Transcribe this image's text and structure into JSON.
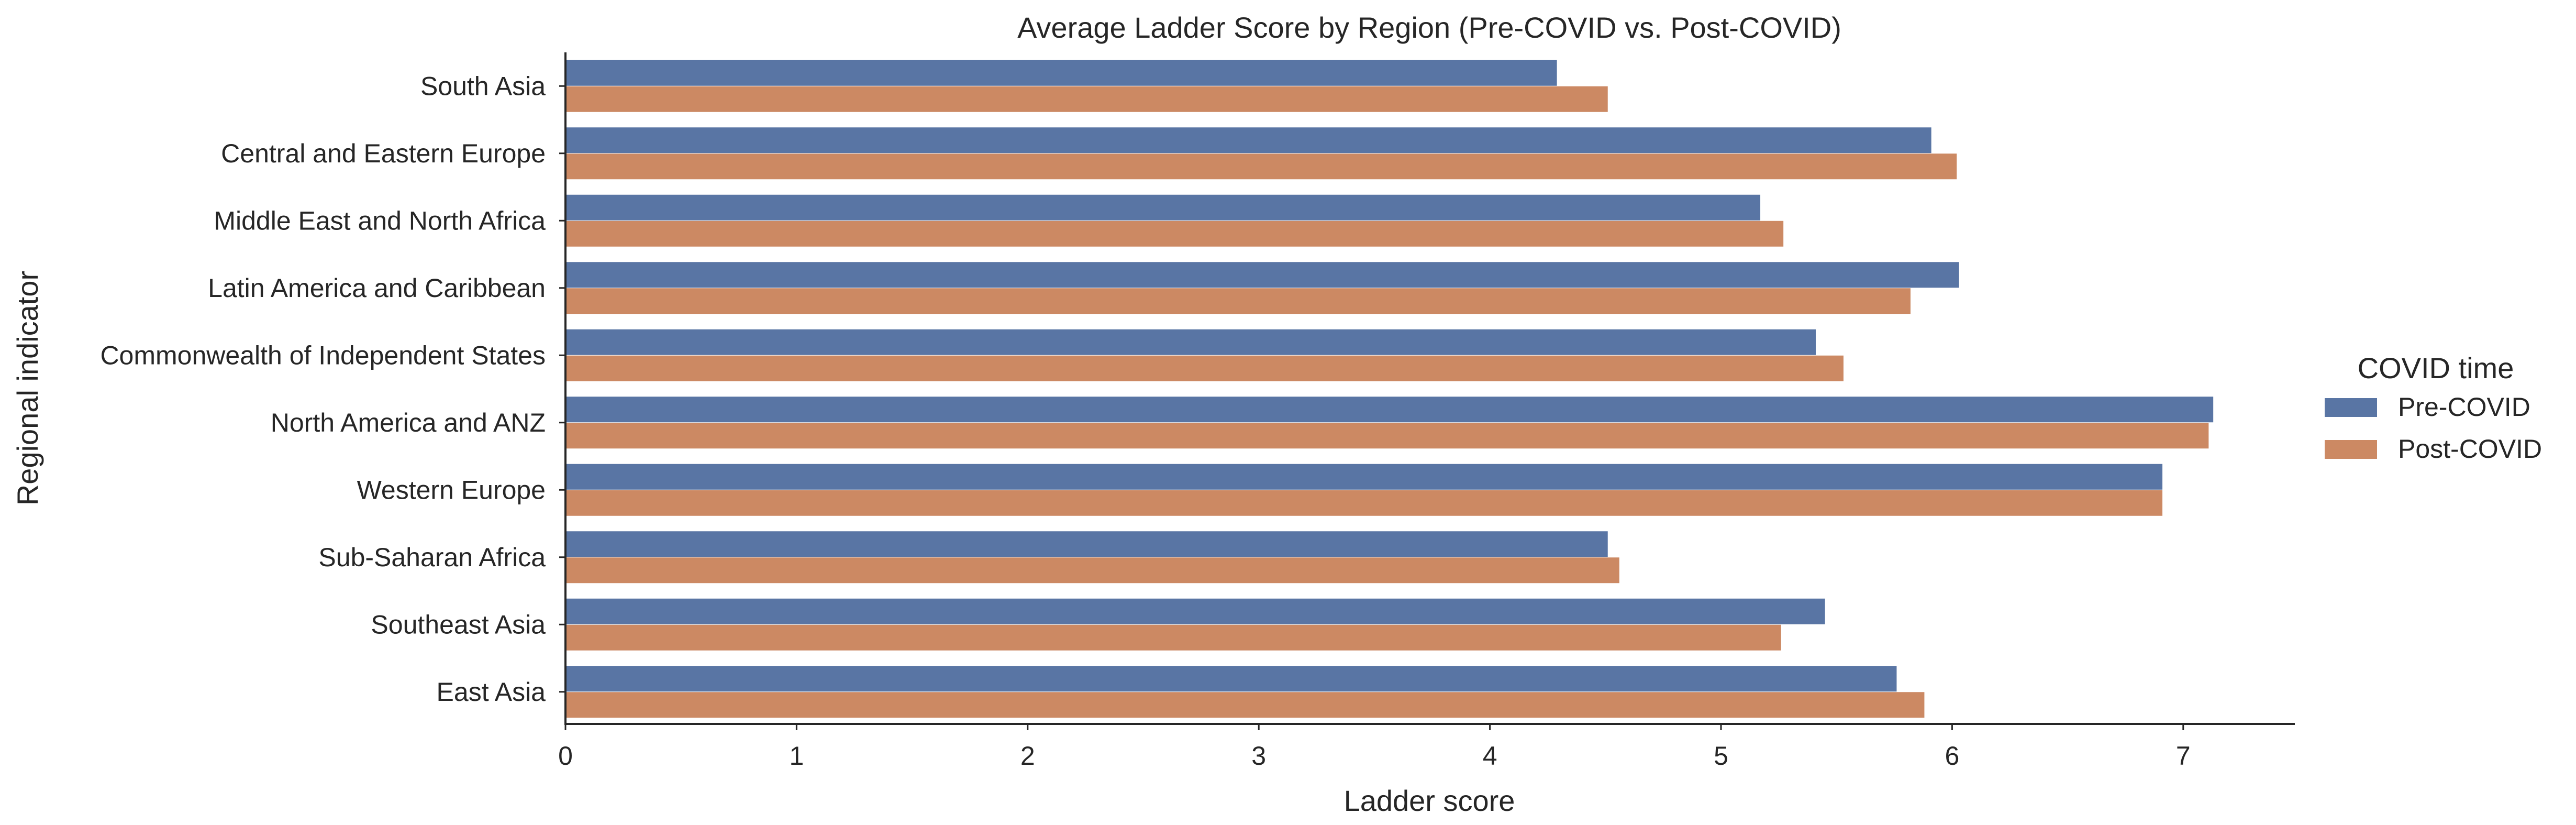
{
  "chart_data": {
    "type": "bar",
    "orientation": "horizontal",
    "title": "Average Ladder Score by Region (Pre-COVID vs. Post-COVID)",
    "xlabel": "Ladder score",
    "ylabel": "Regional indicator",
    "xlim": [
      0,
      7.5
    ],
    "xticks": [
      0,
      1,
      2,
      3,
      4,
      5,
      6,
      7
    ],
    "grid": false,
    "legend": {
      "title": "COVID time",
      "placement": "right"
    },
    "categories": [
      "South Asia",
      "Central and Eastern Europe",
      "Middle East and North Africa",
      "Latin America and Caribbean",
      "Commonwealth of Independent States",
      "North America and ANZ",
      "Western Europe",
      "Sub-Saharan Africa",
      "Southeast Asia",
      "East Asia"
    ],
    "series": [
      {
        "name": "Pre-COVID",
        "color": "#5975a4",
        "values": [
          4.29,
          5.91,
          5.17,
          6.03,
          5.41,
          7.13,
          6.91,
          4.51,
          5.45,
          5.76
        ]
      },
      {
        "name": "Post-COVID",
        "color": "#cc8963",
        "values": [
          4.51,
          6.02,
          5.27,
          5.82,
          5.53,
          7.11,
          6.91,
          4.56,
          5.26,
          5.88
        ]
      }
    ]
  }
}
